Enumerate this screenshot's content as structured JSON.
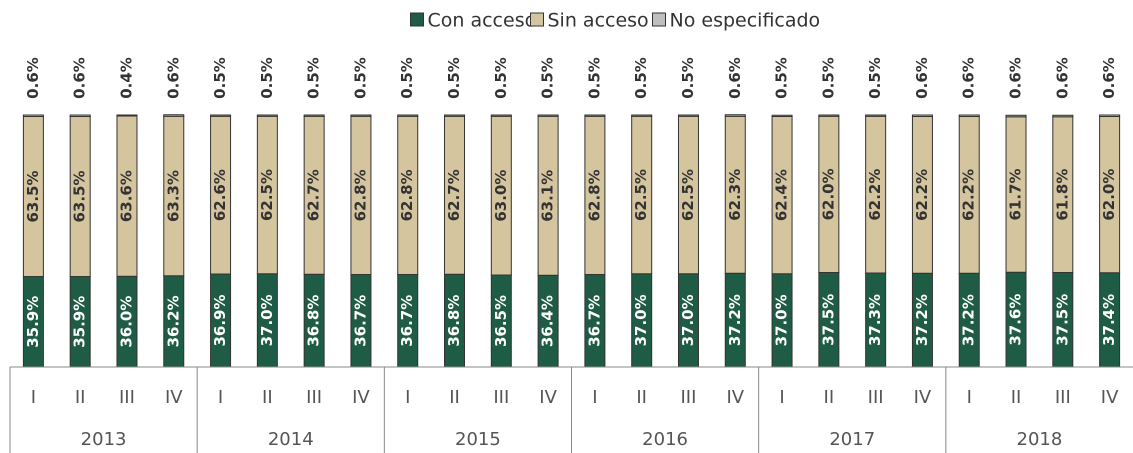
{
  "chart_data": {
    "type": "stacked_bar",
    "categories": [
      "I",
      "II",
      "III",
      "IV",
      "I",
      "II",
      "III",
      "IV",
      "I",
      "II",
      "III",
      "IV",
      "I",
      "II",
      "III",
      "IV",
      "I",
      "II",
      "III",
      "IV",
      "I",
      "II",
      "III",
      "IV"
    ],
    "groups": [
      "2013",
      "2014",
      "2015",
      "2016",
      "2017",
      "2018"
    ],
    "ylim": [
      0,
      100
    ],
    "series": [
      {
        "name": "Con acceso",
        "color": "#1f5c45",
        "values": [
          35.9,
          35.9,
          36.0,
          36.2,
          36.9,
          37.0,
          36.8,
          36.7,
          36.7,
          36.8,
          36.5,
          36.4,
          36.7,
          37.0,
          37.0,
          37.2,
          37.0,
          37.5,
          37.3,
          37.2,
          37.2,
          37.6,
          37.5,
          37.4
        ],
        "value_labels": [
          "35.9%",
          "35.9%",
          "36.0%",
          "36.2%",
          "36.9%",
          "37.0%",
          "36.8%",
          "36.7%",
          "36.7%",
          "36.8%",
          "36.5%",
          "36.4%",
          "36.7%",
          "37.0%",
          "37.0%",
          "37.2%",
          "37.0%",
          "37.5%",
          "37.3%",
          "37.2%",
          "37.2%",
          "37.6%",
          "37.5%",
          "37.4%"
        ]
      },
      {
        "name": "Sin acceso",
        "color": "#d5c59f",
        "values": [
          63.5,
          63.5,
          63.6,
          63.3,
          62.6,
          62.5,
          62.7,
          62.8,
          62.8,
          62.7,
          63.0,
          63.1,
          62.8,
          62.5,
          62.5,
          62.3,
          62.4,
          62.0,
          62.2,
          62.2,
          62.2,
          61.7,
          61.8,
          62.0
        ],
        "value_labels": [
          "63.5%",
          "63.5%",
          "63.6%",
          "63.3%",
          "62.6%",
          "62.5%",
          "62.7%",
          "62.8%",
          "62.8%",
          "62.7%",
          "63.0%",
          "63.1%",
          "62.8%",
          "62.5%",
          "62.5%",
          "62.3%",
          "62.4%",
          "62.0%",
          "62.2%",
          "62.2%",
          "62.2%",
          "61.7%",
          "61.8%",
          "62.0%"
        ]
      },
      {
        "name": "No especificado",
        "color": "#bfbfbf",
        "values": [
          0.6,
          0.6,
          0.4,
          0.6,
          0.5,
          0.5,
          0.5,
          0.5,
          0.5,
          0.5,
          0.5,
          0.5,
          0.5,
          0.5,
          0.5,
          0.6,
          0.5,
          0.5,
          0.5,
          0.6,
          0.6,
          0.6,
          0.6,
          0.6
        ],
        "value_labels": [
          "0.6%",
          "0.6%",
          "0.4%",
          "0.6%",
          "0.5%",
          "0.5%",
          "0.5%",
          "0.5%",
          "0.5%",
          "0.5%",
          "0.5%",
          "0.5%",
          "0.5%",
          "0.5%",
          "0.5%",
          "0.6%",
          "0.5%",
          "0.5%",
          "0.5%",
          "0.6%",
          "0.6%",
          "0.6%",
          "0.6%",
          "0.6%"
        ]
      }
    ]
  }
}
